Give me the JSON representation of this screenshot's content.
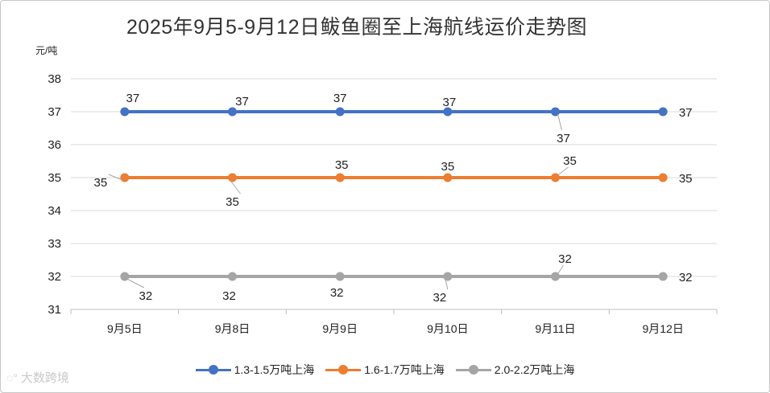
{
  "chart_data": {
    "type": "line",
    "title": "2025年9月5-9月12日鲅鱼圈至上海航线运价走势图",
    "unit_label": "元/吨",
    "categories": [
      "9月5日",
      "9月8日",
      "9月9日",
      "9月10日",
      "9月11日",
      "9月12日"
    ],
    "ylim": [
      31,
      38
    ],
    "yticks": [
      31,
      32,
      33,
      34,
      35,
      36,
      37,
      38
    ],
    "grid": true,
    "legend_position": "bottom",
    "series": [
      {
        "name": "1.3-1.5万吨上海",
        "color": "#4472c4",
        "values": [
          37,
          37,
          37,
          37,
          37,
          37
        ]
      },
      {
        "name": "1.6-1.7万吨上海",
        "color": "#ed7d31",
        "values": [
          35,
          35,
          35,
          35,
          35,
          35
        ]
      },
      {
        "name": "2.0-2.2万吨上海",
        "color": "#a5a5a5",
        "values": [
          32,
          32,
          32,
          32,
          32,
          32
        ]
      }
    ]
  },
  "watermark": {
    "text": "大数跨境",
    "icon": "chat-bubble-icon"
  }
}
